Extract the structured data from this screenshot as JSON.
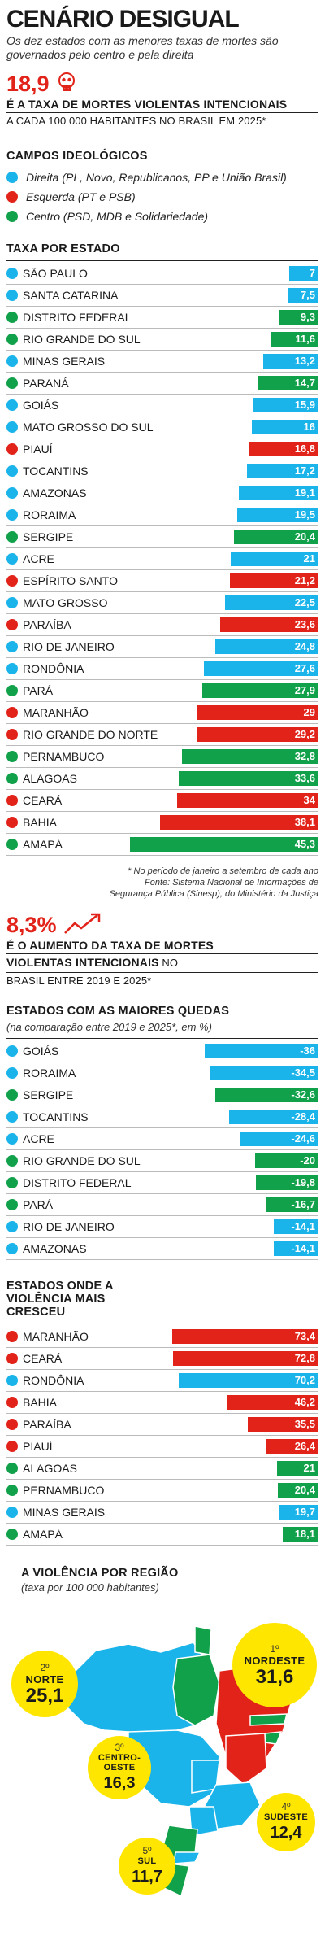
{
  "title": "CENÁRIO DESIGUAL",
  "subtitle": "Os dez estados com as menores taxas de mortes são governados pelo centro e pela direita",
  "headline1": {
    "value": "18,9",
    "line1": "É A TAXA DE MORTES VIOLENTAS INTENCIONAIS",
    "line2": "A CADA 100 000 HABITANTES NO BRASIL EM 2025*",
    "icon": "skull-icon"
  },
  "legend": {
    "title": "CAMPOS IDEOLÓGICOS",
    "items": [
      {
        "label": "Direita (PL, Novo, Republicanos, PP e União Brasil)",
        "color": "#1ab4ea"
      },
      {
        "label": "Esquerda (PT e PSB)",
        "color": "#e2231a"
      },
      {
        "label": "Centro (PSD, MDB e Solidariedade)",
        "color": "#12a14b"
      }
    ]
  },
  "colors": {
    "direita": "#1ab4ea",
    "esquerda": "#e2231a",
    "centro": "#12a14b",
    "yellow": "#ffe600"
  },
  "chart_data": [
    {
      "type": "bar",
      "title": "TAXA POR ESTADO",
      "categories": [
        "SÃO PAULO",
        "SANTA CATARINA",
        "DISTRITO FEDERAL",
        "RIO GRANDE DO SUL",
        "MINAS GERAIS",
        "PARANÁ",
        "GOIÁS",
        "MATO GROSSO DO SUL",
        "PIAUÍ",
        "TOCANTINS",
        "AMAZONAS",
        "RORAIMA",
        "SERGIPE",
        "ACRE",
        "ESPÍRITO SANTO",
        "MATO GROSSO",
        "PARAÍBA",
        "RIO DE JANEIRO",
        "RONDÔNIA",
        "PARÁ",
        "MARANHÃO",
        "RIO GRANDE DO NORTE",
        "PERNAMBUCO",
        "ALAGOAS",
        "CEARÁ",
        "BAHIA",
        "AMAPÁ"
      ],
      "values": [
        7,
        7.5,
        9.3,
        11.6,
        13.2,
        14.7,
        15.9,
        16,
        16.8,
        17.2,
        19.1,
        19.5,
        20.4,
        21,
        21.2,
        22.5,
        23.6,
        24.8,
        27.6,
        27.9,
        29,
        29.2,
        32.8,
        33.6,
        34,
        38.1,
        45.3
      ],
      "labels": [
        "7",
        "7,5",
        "9,3",
        "11,6",
        "13,2",
        "14,7",
        "15,9",
        "16",
        "16,8",
        "17,2",
        "19,1",
        "19,5",
        "20,4",
        "21",
        "21,2",
        "22,5",
        "23,6",
        "24,8",
        "27,6",
        "27,9",
        "29",
        "29,2",
        "32,8",
        "33,6",
        "34",
        "38,1",
        "45,3"
      ],
      "groups": [
        "direita",
        "direita",
        "centro",
        "centro",
        "direita",
        "centro",
        "direita",
        "direita",
        "esquerda",
        "direita",
        "direita",
        "direita",
        "centro",
        "direita",
        "esquerda",
        "direita",
        "esquerda",
        "direita",
        "direita",
        "centro",
        "esquerda",
        "esquerda",
        "centro",
        "centro",
        "esquerda",
        "esquerda",
        "centro"
      ]
    },
    {
      "type": "bar",
      "title": "ESTADOS COM AS MAIORES QUEDAS",
      "note": "(na comparação entre 2019 e 2025*, em %)",
      "categories": [
        "GOIÁS",
        "RORAIMA",
        "SERGIPE",
        "TOCANTINS",
        "ACRE",
        "RIO GRANDE DO SUL",
        "DISTRITO FEDERAL",
        "PARÁ",
        "RIO DE JANEIRO",
        "AMAZONAS"
      ],
      "values": [
        -36,
        -34.5,
        -32.6,
        -28.4,
        -24.6,
        -20,
        -19.8,
        -16.7,
        -14.1,
        -14.1
      ],
      "labels": [
        "-36",
        "-34,5",
        "-32,6",
        "-28,4",
        "-24,6",
        "-20",
        "-19,8",
        "-16,7",
        "-14,1",
        "-14,1"
      ],
      "groups": [
        "direita",
        "direita",
        "centro",
        "direita",
        "direita",
        "centro",
        "centro",
        "centro",
        "direita",
        "direita"
      ]
    },
    {
      "type": "bar",
      "title": "ESTADOS ONDE A VIOLÊNCIA MAIS CRESCEU",
      "categories": [
        "MARANHÃO",
        "CEARÁ",
        "RONDÔNIA",
        "BAHIA",
        "PARAÍBA",
        "PIAUÍ",
        "ALAGOAS",
        "PERNAMBUCO",
        "MINAS GERAIS",
        "AMAPÁ"
      ],
      "values": [
        73.4,
        72.8,
        70.2,
        46.2,
        35.5,
        26.4,
        21,
        20.4,
        19.7,
        18.1
      ],
      "labels": [
        "73,4",
        "72,8",
        "70,2",
        "46,2",
        "35,5",
        "26,4",
        "21",
        "20,4",
        "19,7",
        "18,1"
      ],
      "groups": [
        "esquerda",
        "esquerda",
        "direita",
        "esquerda",
        "esquerda",
        "esquerda",
        "centro",
        "centro",
        "direita",
        "centro"
      ]
    }
  ],
  "footnote": {
    "line1": "* No período de janeiro a setembro de cada ano",
    "line2": "Fonte: Sistema Nacional de Informações de",
    "line3": "Segurança Pública (Sinesp), do Ministério da Justiça"
  },
  "headline2": {
    "value": "8,3%",
    "line1": "É O AUMENTO DA TAXA DE MORTES",
    "line2a": "VIOLENTAS INTENCIONAIS",
    "line2b": " NO",
    "line3": "BRASIL ENTRE 2019 E 2025*",
    "icon": "trend-up-arrow-icon"
  },
  "map": {
    "title": "A VIOLÊNCIA POR REGIÃO",
    "note": "(taxa por 100 000 habitantes)",
    "regions": [
      {
        "rank": "2º",
        "name": "NORTE",
        "value": "25,1"
      },
      {
        "rank": "1º",
        "name": "NORDESTE",
        "value": "31,6"
      },
      {
        "rank": "3º",
        "name": "CENTRO-OESTE",
        "value": "16,3"
      },
      {
        "rank": "4º",
        "name": "SUDESTE",
        "value": "12,4"
      },
      {
        "rank": "5º",
        "name": "SUL",
        "value": "11,7"
      }
    ]
  }
}
